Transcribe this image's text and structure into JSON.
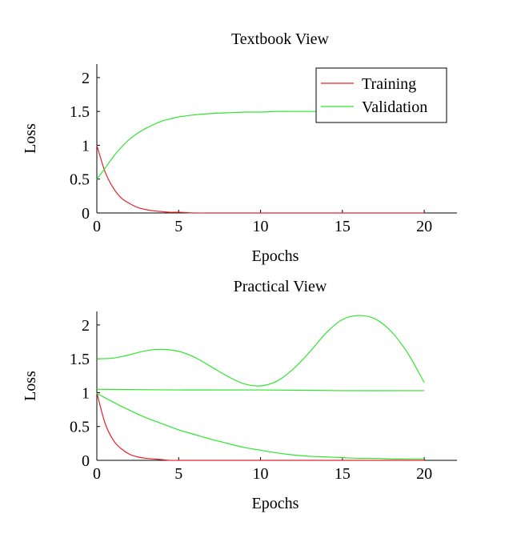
{
  "chart_data": [
    {
      "type": "line",
      "title": "Textbook View",
      "xlabel": "Epochs",
      "ylabel": "Loss",
      "xlim": [
        0,
        22
      ],
      "ylim": [
        0,
        2.2
      ],
      "xticks": [
        0,
        5,
        10,
        15,
        20
      ],
      "xtick_labels": [
        "0",
        "5",
        "10",
        "15",
        "20"
      ],
      "yticks": [
        0,
        0.5,
        1,
        1.5,
        2
      ],
      "ytick_labels": [
        "0",
        "0.5",
        "1",
        "1.5",
        "2"
      ],
      "grid": false,
      "legend_position": "top-right",
      "series": [
        {
          "name": "Training",
          "color": "#e8212a",
          "x": [
            0,
            0.5,
            1,
            1.5,
            2,
            2.5,
            3,
            3.5,
            4,
            4.5,
            5,
            6,
            7,
            8,
            9,
            10,
            12,
            14,
            16,
            18,
            20
          ],
          "values": [
            1.0,
            0.61,
            0.37,
            0.22,
            0.14,
            0.08,
            0.05,
            0.03,
            0.02,
            0.01,
            0.01,
            0.0,
            0.0,
            0.0,
            0.0,
            0.0,
            0.0,
            0.0,
            0.0,
            0.0,
            0.0
          ]
        },
        {
          "name": "Validation",
          "color": "#2ee62e",
          "x": [
            0,
            0.5,
            1,
            1.5,
            2,
            2.5,
            3,
            3.5,
            4,
            4.5,
            5,
            6,
            7,
            8,
            9,
            10,
            11,
            12,
            14,
            16,
            18,
            20
          ],
          "values": [
            0.5,
            0.66,
            0.83,
            0.97,
            1.09,
            1.18,
            1.25,
            1.31,
            1.36,
            1.39,
            1.42,
            1.45,
            1.47,
            1.48,
            1.49,
            1.49,
            1.5,
            1.5,
            1.5,
            1.5,
            1.5,
            1.5
          ]
        }
      ]
    },
    {
      "type": "line",
      "title": "Practical View",
      "xlabel": "Epochs",
      "ylabel": "Loss",
      "xlim": [
        0,
        22
      ],
      "ylim": [
        0,
        2.2
      ],
      "xticks": [
        0,
        5,
        10,
        15,
        20
      ],
      "xtick_labels": [
        "0",
        "5",
        "10",
        "15",
        "20"
      ],
      "yticks": [
        0,
        0.5,
        1,
        1.5,
        2
      ],
      "ytick_labels": [
        "0",
        "0.5",
        "1",
        "1.5",
        "2"
      ],
      "grid": false,
      "series": [
        {
          "color": "#e8212a",
          "x": [
            0,
            0.5,
            1,
            1.5,
            2,
            2.5,
            3,
            3.5,
            4,
            4.5,
            5,
            6,
            7,
            8,
            10,
            12,
            14,
            16,
            18,
            20
          ],
          "values": [
            1.0,
            0.55,
            0.3,
            0.17,
            0.09,
            0.05,
            0.03,
            0.02,
            0.01,
            0.0,
            0.0,
            0.0,
            0.0,
            0.0,
            0.0,
            0.0,
            0.0,
            0.0,
            0.0,
            0.0
          ]
        },
        {
          "color": "#2ee62e",
          "x": [
            0,
            1,
            2,
            3,
            4,
            5,
            6,
            7,
            8,
            9,
            10,
            11,
            12,
            13,
            14,
            15,
            16,
            17,
            18,
            19,
            20
          ],
          "values": [
            0.99,
            0.86,
            0.74,
            0.63,
            0.54,
            0.45,
            0.38,
            0.31,
            0.25,
            0.19,
            0.15,
            0.11,
            0.08,
            0.06,
            0.05,
            0.04,
            0.03,
            0.03,
            0.02,
            0.02,
            0.02
          ]
        },
        {
          "color": "#2ee62e",
          "x": [
            0,
            5,
            10,
            15,
            20
          ],
          "values": [
            1.05,
            1.04,
            1.04,
            1.03,
            1.03
          ]
        },
        {
          "color": "#2ee62e",
          "x": [
            0,
            1,
            2,
            3,
            4,
            5,
            6,
            7,
            8,
            9,
            10,
            11,
            12,
            13,
            14,
            15,
            16,
            17,
            18,
            19,
            20
          ],
          "values": [
            1.5,
            1.51,
            1.56,
            1.62,
            1.64,
            1.61,
            1.52,
            1.38,
            1.24,
            1.13,
            1.1,
            1.17,
            1.35,
            1.6,
            1.88,
            2.08,
            2.14,
            2.09,
            1.9,
            1.58,
            1.15
          ]
        }
      ]
    }
  ]
}
